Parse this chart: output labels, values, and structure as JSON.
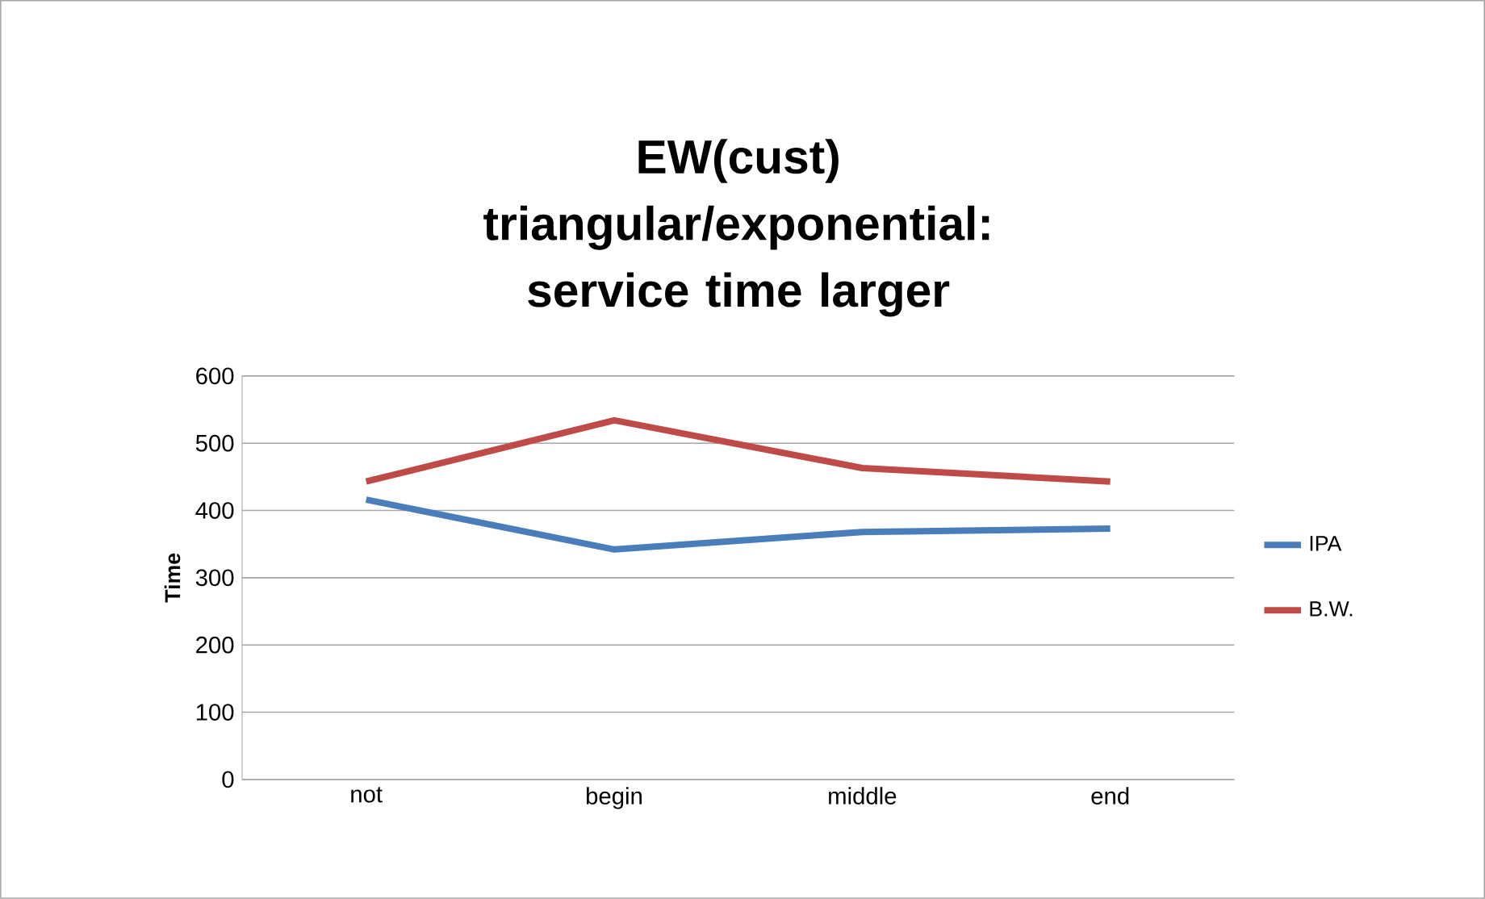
{
  "chart_data": {
    "type": "line",
    "title": "EW(cust)\ntriangular/exponential: service time larger",
    "ylabel": "Time",
    "categories": [
      "not",
      "begin",
      "middle",
      "end"
    ],
    "series": [
      {
        "name": "IPA",
        "color": "#4a7ebb",
        "values": [
          416,
          342,
          368,
          373
        ]
      },
      {
        "name": "B.W.",
        "color": "#be4b48",
        "values": [
          443,
          534,
          463,
          443
        ]
      }
    ],
    "ylim": [
      0,
      600
    ],
    "yticks": [
      0,
      100,
      200,
      300,
      400,
      500,
      600
    ],
    "grid": "y",
    "legend": "right",
    "marker": "none",
    "line_style": "solid"
  }
}
